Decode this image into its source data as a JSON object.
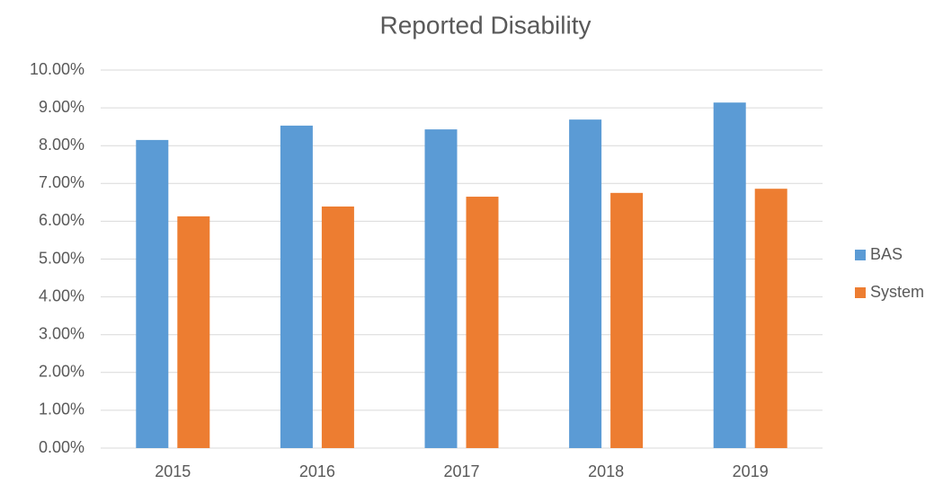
{
  "chart_data": {
    "type": "bar",
    "title": "Reported Disability",
    "categories": [
      "2015",
      "2016",
      "2017",
      "2018",
      "2019"
    ],
    "series": [
      {
        "name": "BAS",
        "color": "#5b9bd5",
        "values": [
          8.15,
          8.53,
          8.43,
          8.69,
          9.14
        ]
      },
      {
        "name": "System",
        "color": "#ed7d31",
        "values": [
          6.13,
          6.39,
          6.65,
          6.75,
          6.86
        ]
      }
    ],
    "ylim": [
      0,
      10
    ],
    "yticks": [
      {
        "value": 0,
        "label": "0.00%"
      },
      {
        "value": 1,
        "label": "1.00%"
      },
      {
        "value": 2,
        "label": "2.00%"
      },
      {
        "value": 3,
        "label": "3.00%"
      },
      {
        "value": 4,
        "label": "4.00%"
      },
      {
        "value": 5,
        "label": "5.00%"
      },
      {
        "value": 6,
        "label": "6.00%"
      },
      {
        "value": 7,
        "label": "7.00%"
      },
      {
        "value": 8,
        "label": "8.00%"
      },
      {
        "value": 9,
        "label": "9.00%"
      },
      {
        "value": 10,
        "label": "10.00%"
      }
    ],
    "grid": true,
    "legend": "right"
  }
}
